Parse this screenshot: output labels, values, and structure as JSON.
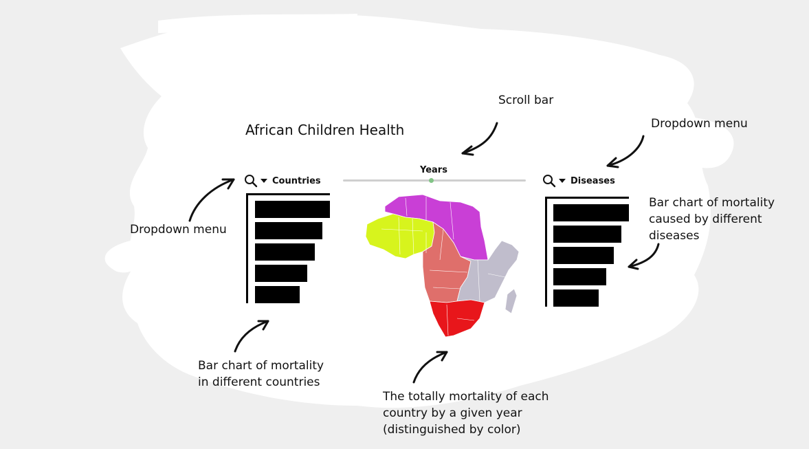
{
  "app": {
    "title": "African Children Health"
  },
  "years_control": {
    "label": "Years",
    "thumb_fraction": 0.48
  },
  "countries_panel": {
    "label": "Countries",
    "search_icon": "search-icon",
    "dropdown_icon": "caret-down-icon",
    "bar_values": [
      1.0,
      0.9,
      0.8,
      0.7,
      0.6
    ]
  },
  "diseases_panel": {
    "label": "Diseases",
    "search_icon": "search-icon",
    "dropdown_icon": "caret-down-icon",
    "bar_values": [
      1.0,
      0.9,
      0.8,
      0.7,
      0.6
    ]
  },
  "map": {
    "legend_colors": {
      "north": "#c93fd6",
      "west": "#d7f41d",
      "central": "#df6f6b",
      "east": "#c0bdcc",
      "south": "#e8161b"
    }
  },
  "annotations": {
    "scroll_bar": "Scroll bar",
    "dropdown_right": "Dropdown menu",
    "dropdown_left": "Dropdown menu",
    "disease_chart": [
      "Bar chart of mortality",
      "caused by different",
      "diseases"
    ],
    "country_chart": [
      "Bar chart of mortality",
      "in different countries"
    ],
    "map_note": [
      "The totally mortality of each",
      "country by a given year",
      "(distinguished by color)"
    ]
  }
}
